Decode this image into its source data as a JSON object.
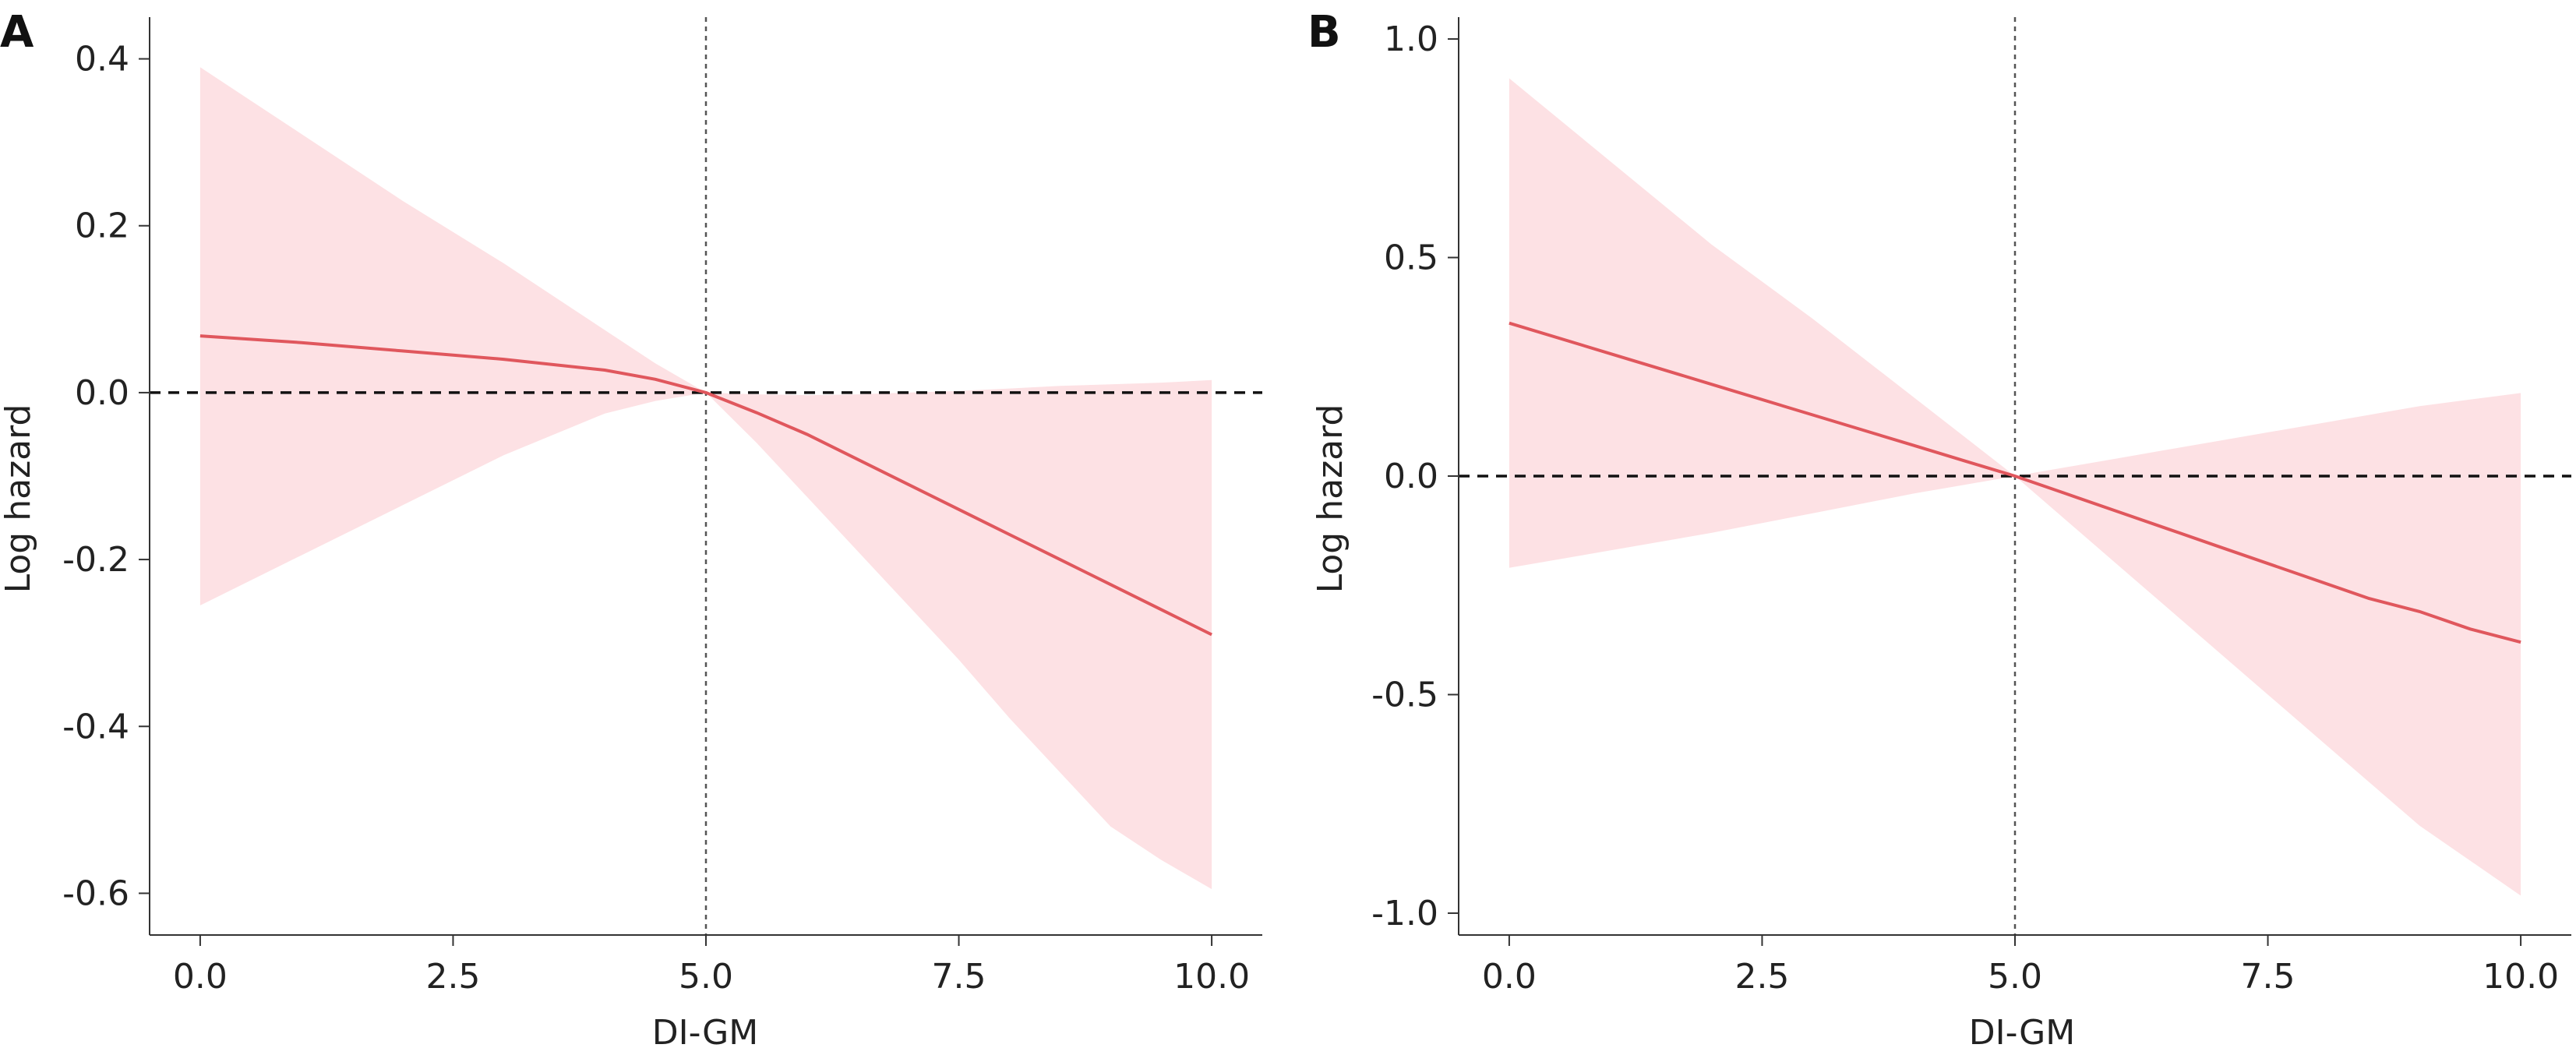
{
  "chart_data": [
    {
      "panel_label": "A",
      "type": "line",
      "xlabel": "DI-GM",
      "ylabel": "Log hazard",
      "xlim": [
        -0.5,
        10.5
      ],
      "ylim": [
        -0.65,
        0.45
      ],
      "xticks": [
        "0.0",
        "2.5",
        "5.0",
        "7.5",
        "10.0"
      ],
      "yticks": [
        "-0.6",
        "-0.4",
        "-0.2",
        "0.0",
        "0.2",
        "0.4"
      ],
      "reference_x": 5.0,
      "reference_y": 0.0,
      "line_color": "#e0575d",
      "band_color": "#fde1e4",
      "x": [
        0.0,
        1.0,
        2.0,
        3.0,
        4.0,
        4.5,
        5.0,
        5.5,
        6.0,
        6.5,
        7.0,
        7.5,
        8.0,
        8.5,
        9.0,
        9.5,
        10.0
      ],
      "y": [
        0.068,
        0.06,
        0.05,
        0.04,
        0.027,
        0.016,
        0.0,
        -0.024,
        -0.05,
        -0.08,
        -0.11,
        -0.14,
        -0.17,
        -0.2,
        -0.23,
        -0.26,
        -0.29
      ],
      "lower": [
        -0.255,
        -0.195,
        -0.135,
        -0.075,
        -0.025,
        -0.01,
        0.0,
        -0.06,
        -0.125,
        -0.19,
        -0.255,
        -0.32,
        -0.39,
        -0.455,
        -0.52,
        -0.56,
        -0.595
      ],
      "upper": [
        0.39,
        0.31,
        0.23,
        0.155,
        0.075,
        0.035,
        0.0,
        -0.002,
        -0.003,
        -0.002,
        0.0,
        0.002,
        0.005,
        0.008,
        0.01,
        0.012,
        0.015
      ]
    },
    {
      "panel_label": "B",
      "type": "line",
      "xlabel": "DI-GM",
      "ylabel": "Log hazard",
      "xlim": [
        -0.5,
        10.5
      ],
      "ylim": [
        -1.05,
        1.05
      ],
      "xticks": [
        "0.0",
        "2.5",
        "5.0",
        "7.5",
        "10.0"
      ],
      "yticks": [
        "-1.0",
        "-0.5",
        "0.0",
        "0.5",
        "1.0"
      ],
      "reference_x": 5.0,
      "reference_y": 0.0,
      "line_color": "#e0575d",
      "band_color": "#fde1e4",
      "x": [
        0.0,
        1.0,
        2.0,
        3.0,
        4.0,
        4.5,
        5.0,
        5.5,
        6.0,
        6.5,
        7.0,
        7.5,
        8.0,
        8.5,
        9.0,
        9.5,
        10.0
      ],
      "y": [
        0.35,
        0.28,
        0.21,
        0.14,
        0.07,
        0.035,
        0.0,
        -0.04,
        -0.08,
        -0.12,
        -0.16,
        -0.2,
        -0.24,
        -0.28,
        -0.31,
        -0.35,
        -0.38
      ],
      "lower": [
        -0.21,
        -0.17,
        -0.13,
        -0.085,
        -0.04,
        -0.02,
        0.0,
        -0.1,
        -0.2,
        -0.3,
        -0.4,
        -0.5,
        -0.6,
        -0.7,
        -0.8,
        -0.88,
        -0.96
      ],
      "upper": [
        0.91,
        0.72,
        0.53,
        0.36,
        0.18,
        0.09,
        0.0,
        0.02,
        0.04,
        0.06,
        0.08,
        0.1,
        0.12,
        0.14,
        0.16,
        0.175,
        0.19
      ]
    }
  ]
}
